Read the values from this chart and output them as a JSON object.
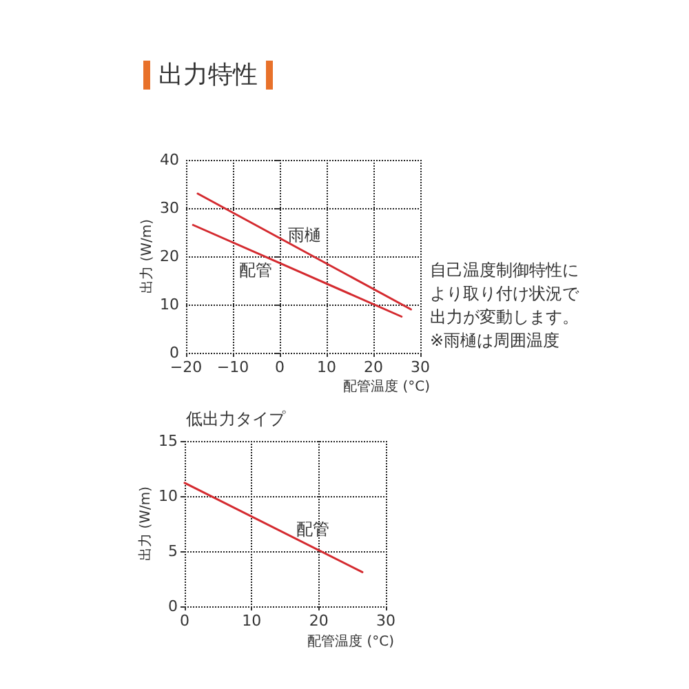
{
  "chart_data": [
    {
      "type": "line",
      "title": "出力特性",
      "xlabel": "配管温度 (°C)",
      "ylabel": "出力 (W/m)",
      "series": [
        {
          "name": "雨樋",
          "color": "#d42a2f",
          "x": [
            -17.5,
            28
          ],
          "values": [
            33,
            9
          ]
        },
        {
          "name": "配管",
          "color": "#d42a2f",
          "x": [
            -18.5,
            26
          ],
          "values": [
            26.5,
            7.5
          ]
        }
      ],
      "xlim": [
        -20,
        30
      ],
      "xticks": [
        {
          "value": -20,
          "label": "−20"
        },
        {
          "value": -10,
          "label": "−10"
        },
        0,
        10,
        20,
        30
      ],
      "ylim": [
        0,
        40
      ],
      "yticks": [
        0,
        10,
        20,
        30,
        40
      ],
      "grid": true,
      "marker": "none",
      "line_style": "solid",
      "annotations": [
        "自己温度制御特性により取り付け状況で出力が変動します。※雨樋は周囲温度"
      ]
    },
    {
      "type": "line",
      "title": "低出力タイプ",
      "xlabel": "配管温度 (°C)",
      "ylabel": "出力 (W/m)",
      "series": [
        {
          "name": "配管",
          "color": "#d42a2f",
          "x": [
            0,
            26.5
          ],
          "values": [
            11.2,
            3.1
          ]
        }
      ],
      "xlim": [
        0,
        30
      ],
      "xticks": [
        0,
        10,
        20,
        30
      ],
      "ylim": [
        0,
        15
      ],
      "yticks": [
        0,
        5,
        10,
        15
      ],
      "grid": true,
      "marker": "none",
      "line_style": "solid"
    }
  ]
}
